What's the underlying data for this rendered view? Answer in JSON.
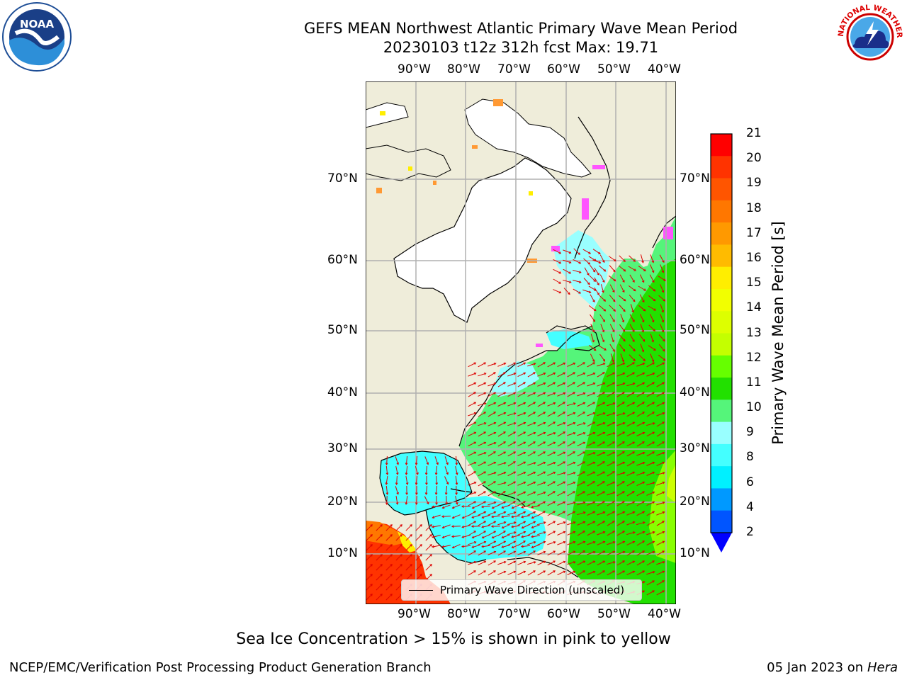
{
  "title": {
    "line1": "GEFS MEAN Northwest Atlantic Primary Wave Mean Period",
    "line2": "20230103 t12z 312h fcst   Max: 19.71"
  },
  "map": {
    "lon_ticks": [
      "90°W",
      "80°W",
      "70°W",
      "60°W",
      "50°W",
      "40°W"
    ],
    "lat_ticks": [
      "70°N",
      "60°N",
      "50°N",
      "40°N",
      "30°N",
      "20°N",
      "10°N"
    ],
    "legend_label": "Primary Wave Direction (unscaled)",
    "colors": {
      "land": "#efedda",
      "ice_region": "#ffffff",
      "grid": "#b0b0b0",
      "arrows": "#dd0000"
    }
  },
  "colorbar": {
    "label": "Primary Wave Mean Period [s]",
    "ticks": [
      "21",
      "20",
      "19",
      "18",
      "17",
      "16",
      "15",
      "14",
      "13",
      "12",
      "11",
      "10",
      "9",
      "8",
      "6",
      "4",
      "2"
    ],
    "colors": [
      "#ff0000",
      "#ff3300",
      "#ff5500",
      "#ff7700",
      "#ff9900",
      "#ffbb00",
      "#ffee00",
      "#f2ff00",
      "#ddff00",
      "#c4ff00",
      "#66ff00",
      "#22e000",
      "#55f57a",
      "#99ffff",
      "#44ffff",
      "#00f0ff",
      "#0099ff",
      "#0055ff"
    ],
    "extend_color": "#0000ff"
  },
  "subtitle": "Sea Ice Concentration > 15% is shown in pink to yellow",
  "footer": {
    "left": "NCEP/EMC/Verification Post Processing Product Generation Branch",
    "right_date": "05 Jan 2023 on",
    "right_machine": "Hera"
  },
  "logos": {
    "left_text": "NOAA",
    "right_text": "NATIONAL WEATHER SERVICE"
  }
}
